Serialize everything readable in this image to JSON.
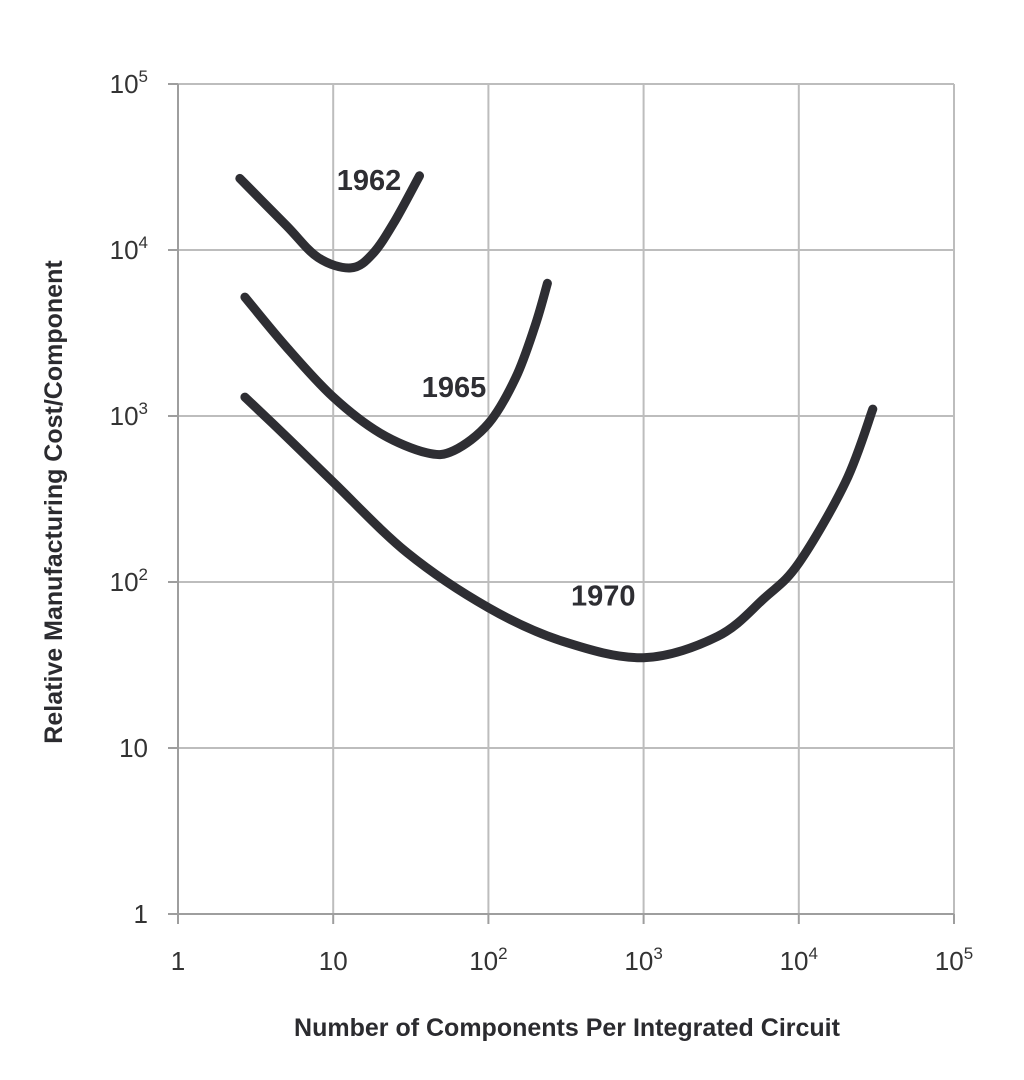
{
  "chart_data": {
    "type": "line",
    "title": "",
    "xlabel": "Number of Components Per Integrated Circuit",
    "ylabel": "Relative Manufacturing Cost/Component",
    "xscale": "log",
    "yscale": "log",
    "xlim": [
      1,
      100000
    ],
    "ylim": [
      1,
      100000
    ],
    "grid": true,
    "x_ticks": [
      {
        "base": "1",
        "exp": ""
      },
      {
        "base": "10",
        "exp": ""
      },
      {
        "base": "10",
        "exp": "2"
      },
      {
        "base": "10",
        "exp": "3"
      },
      {
        "base": "10",
        "exp": "4"
      },
      {
        "base": "10",
        "exp": "5"
      }
    ],
    "y_ticks": [
      {
        "base": "1",
        "exp": ""
      },
      {
        "base": "10",
        "exp": ""
      },
      {
        "base": "10",
        "exp": "2"
      },
      {
        "base": "10",
        "exp": "3"
      },
      {
        "base": "10",
        "exp": "4"
      },
      {
        "base": "10",
        "exp": "5"
      }
    ],
    "series": [
      {
        "name": "1962",
        "color": "#2e2e33",
        "points": [
          [
            2.5,
            27000
          ],
          [
            5,
            14000
          ],
          [
            8,
            9000
          ],
          [
            13,
            7800
          ],
          [
            18,
            9500
          ],
          [
            25,
            15000
          ],
          [
            36,
            28000
          ]
        ],
        "label_at": [
          17,
          23000
        ]
      },
      {
        "name": "1965",
        "color": "#2e2e33",
        "points": [
          [
            2.7,
            5200
          ],
          [
            5,
            2600
          ],
          [
            10,
            1300
          ],
          [
            20,
            790
          ],
          [
            40,
            600
          ],
          [
            60,
            620
          ],
          [
            100,
            900
          ],
          [
            150,
            1700
          ],
          [
            200,
            3500
          ],
          [
            240,
            6300
          ]
        ],
        "label_at": [
          60,
          1300
        ]
      },
      {
        "name": "1970",
        "color": "#2e2e33",
        "points": [
          [
            2.7,
            1300
          ],
          [
            5,
            750
          ],
          [
            10,
            400
          ],
          [
            30,
            150
          ],
          [
            100,
            70
          ],
          [
            300,
            44
          ],
          [
            1000,
            35
          ],
          [
            3000,
            47
          ],
          [
            6000,
            80
          ],
          [
            10000,
            130
          ],
          [
            20000,
            400
          ],
          [
            30000,
            1100
          ]
        ],
        "label_at": [
          550,
          72
        ]
      }
    ]
  }
}
